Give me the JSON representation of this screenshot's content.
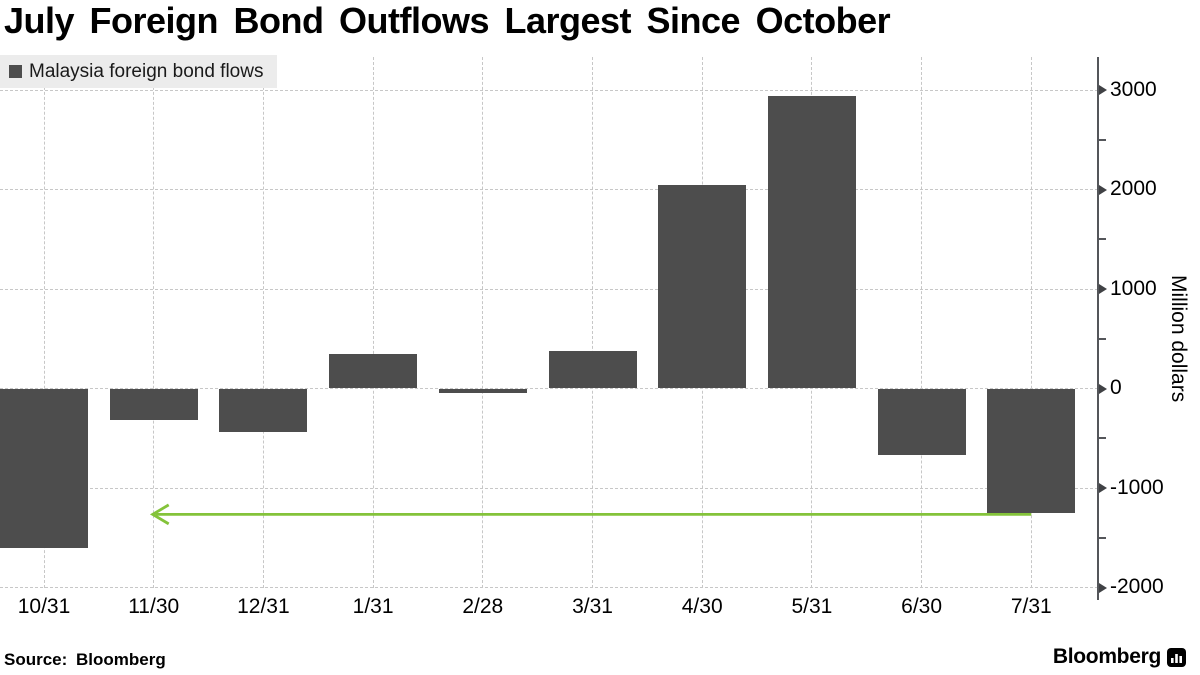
{
  "header": {
    "title": "July Foreign Bond Outflows Largest Since October"
  },
  "chart_data": {
    "type": "bar",
    "title": "July Foreign Bond Outflows Largest Since October",
    "series_name": "Malaysia foreign bond flows",
    "categories": [
      "10/31",
      "11/30",
      "12/31",
      "1/31",
      "2/28",
      "3/31",
      "4/30",
      "5/31",
      "6/30",
      "7/31"
    ],
    "values": [
      -1600,
      -320,
      -440,
      350,
      -45,
      380,
      2050,
      2940,
      -670,
      -1250
    ],
    "ylabel": "Million dollars",
    "ylim": [
      -2000,
      3000
    ],
    "yticks": [
      3000,
      2000,
      1000,
      0,
      -1000,
      -2000
    ],
    "minor_yticks": [
      2500,
      1500,
      500,
      -500,
      -1500
    ],
    "grid": true,
    "legend_position": "top-left",
    "axis_position": "right",
    "bar_color": "#4D4D4D",
    "grid_color": "#C7C7C7",
    "annotation": {
      "type": "arrow",
      "y_value": -1250,
      "from_category": "7/31",
      "to_category": "11/30",
      "direction": "left",
      "color": "#84C33A"
    }
  },
  "footer": {
    "source": "Source:  Bloomberg",
    "logo_text": "Bloomberg",
    "logo_icon": "bar-chart-icon"
  }
}
